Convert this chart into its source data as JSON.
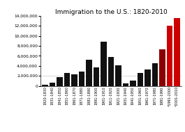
{
  "title": "Immigration to the U.S.: 1820-2010",
  "categories": [
    "1820-1830",
    "1831-1840",
    "1841-1850",
    "1851-1860",
    "1861-1870",
    "1871-1880",
    "1881-1890",
    "1891-1900",
    "1901-1910",
    "1911-1920",
    "1921-1930",
    "1931-1940",
    "1941-1950",
    "1951-1960",
    "1961-1970",
    "1971-1980",
    "1981-1990",
    "*1991-2000",
    "*2001-2010"
  ],
  "values": [
    143439,
    599125,
    1713251,
    2598214,
    2314824,
    2812191,
    5246613,
    3687564,
    8795386,
    5735811,
    4107209,
    528431,
    1035039,
    2515479,
    3321677,
    4493314,
    7338062,
    12000000,
    13500000
  ],
  "colors": [
    "#111111",
    "#111111",
    "#111111",
    "#111111",
    "#111111",
    "#111111",
    "#111111",
    "#111111",
    "#111111",
    "#111111",
    "#111111",
    "#111111",
    "#111111",
    "#111111",
    "#111111",
    "#111111",
    "#8b0000",
    "#cc0000",
    "#cc0000"
  ],
  "ylim": [
    0,
    14000000
  ],
  "yticks": [
    0,
    2000000,
    4000000,
    6000000,
    8000000,
    10000000,
    12000000,
    14000000
  ],
  "bg_color": "#ffffff",
  "title_fontsize": 6.5
}
